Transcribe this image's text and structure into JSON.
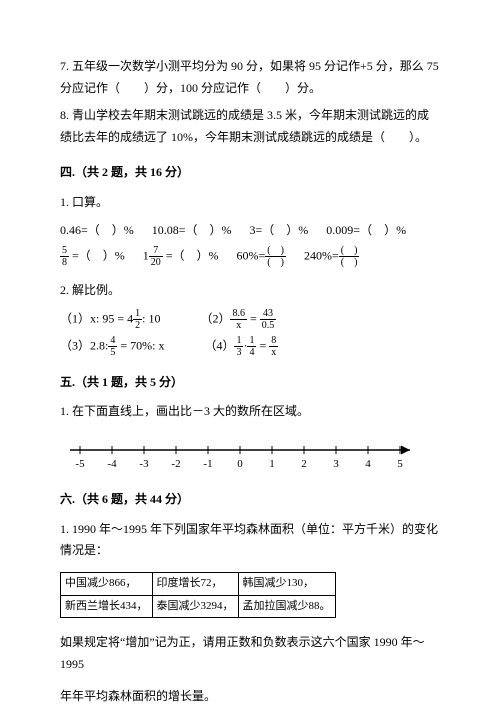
{
  "q7": "7. 五年级一次数学小测平均分为 90 分，如果将 95 分记作+5 分，那么 75 分应记作（　　）分，100 分应记作（　　）分。",
  "q8": "8. 青山学校去年期末测试跳远的成绩是 3.5 米，今年期末测试跳远的成绩比去年的成绩远了 10%，今年期末测试成绩跳远的成绩是（　　）。",
  "sec4_title": "四.（共 2 题，共 16 分）",
  "sec4_q1_label": "1. 口算。",
  "calc": {
    "a": "0.46=（　）%",
    "b": "10.08=（　）%",
    "c": "3=（　）%",
    "d": "0.009=（　）%"
  },
  "frac_row": {
    "a_num": "5",
    "a_den": "8",
    "a_tail": " =（　）%",
    "b_pre": "1",
    "b_num": "7",
    "b_den": "20",
    "b_tail": " =（　）%",
    "c_lead": "60%=",
    "c_num": "(　)",
    "c_den": "(　)",
    "d_lead": "240%=",
    "d_num": "(　)",
    "d_den": "(　)"
  },
  "sec4_q2_label": "2. 解比例。",
  "ratio": {
    "r1_pre": "（1）x: 95 = 4",
    "r1_num": "1",
    "r1_den": "2",
    "r1_tail": ": 10",
    "r2_pre": "（2）",
    "r2a_num": "8.6",
    "r2a_den": "x",
    "r2_mid": " = ",
    "r2b_num": "43",
    "r2b_den": "0.5",
    "r3_pre": "（3）2.8:",
    "r3_num": "4",
    "r3_den": "5",
    "r3_tail": " = 70%: x",
    "r4_pre": "（4）",
    "r4a_num": "1",
    "r4a_den": "3",
    "r4_mid1": "·",
    "r4b_num": "1",
    "r4b_den": "4",
    "r4_mid2": " = ",
    "r4c_num": "8",
    "r4c_den": "x"
  },
  "sec5_title": "五.（共 1 题，共 5 分）",
  "sec5_q1": "1. 在下面直线上，画出比－3 大的数所在区域。",
  "ticks": [
    "-5",
    "-4",
    "-3",
    "-2",
    "-1",
    "0",
    "1",
    "2",
    "3",
    "4",
    "5"
  ],
  "sec6_title": "六.（共 6 题，共 44 分）",
  "sec6_q1": "1. 1990 年～1995 年下列国家年平均森林面积（单位：平方千米）的变化情况是：",
  "table": {
    "r1c1": "中国减少866，",
    "r1c2": "印度增长72，",
    "r1c3": "韩国减少130，",
    "r2c1": "新西兰增长434，",
    "r2c2": "泰国减少3294，",
    "r2c3": "孟加拉国减少88。"
  },
  "sec6_p1": "如果规定将“增加”记为正，请用正数和负数表示这六个国家 1990 年～1995",
  "sec6_p2": "年年平均森林面积的增长量。"
}
